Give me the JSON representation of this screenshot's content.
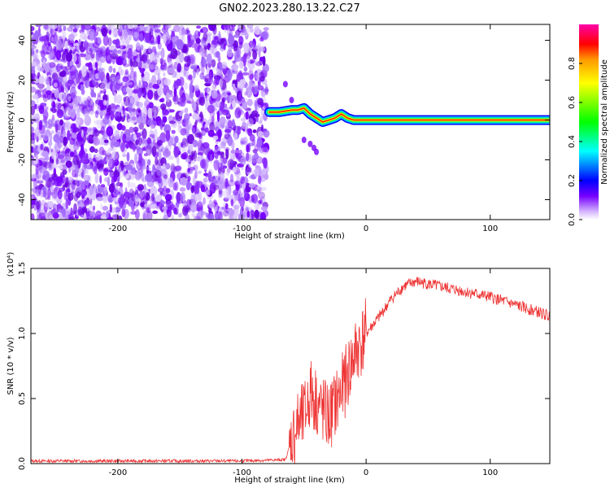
{
  "title": "GN02.2023.280.13.22.C27",
  "chart_data": [
    {
      "type": "heatmap",
      "xlabel": "Height of straight line (km)",
      "ylabel": "Frequency (Hz)",
      "xlim": [
        -270,
        148
      ],
      "ylim": [
        -50,
        48
      ],
      "xticks": [
        -200,
        -100,
        0,
        100
      ],
      "yticks": [
        -40,
        -20,
        0,
        20,
        40
      ],
      "colorbar": {
        "label": "Normalized spectral amplitude",
        "range": [
          0,
          1
        ],
        "ticks": [
          0.0,
          0.2,
          0.4,
          0.6,
          0.8
        ],
        "colormap": [
          "#ff00ff",
          "#ff0066",
          "#ff0000",
          "#ff9900",
          "#ffff00",
          "#00ff00",
          "#00ffff",
          "#0000ff",
          "#7700ff",
          "#ffffff"
        ]
      },
      "noise_region": {
        "x": [
          -270,
          -80
        ],
        "dominant_color": "#7700ff"
      },
      "signal_track": {
        "x": [
          -78,
          -70,
          -60,
          -55,
          -50,
          -45,
          -40,
          -35,
          -30,
          -25,
          -20,
          -15,
          -10,
          0,
          20,
          50,
          100,
          148
        ],
        "freq": [
          4,
          4,
          5,
          5,
          6,
          3,
          1,
          -1,
          0,
          1,
          3,
          1,
          0,
          0,
          0,
          0,
          0,
          0
        ]
      },
      "side_features": [
        {
          "x": [
            -50,
            -45,
            -42,
            -40
          ],
          "freq": [
            -10,
            -12,
            -14,
            -16
          ]
        },
        {
          "x": [
            -65,
            -60
          ],
          "freq": [
            18,
            10
          ]
        }
      ]
    },
    {
      "type": "line",
      "xlabel": "Height of straight line (km)",
      "ylabel": "SNR (10 * v/v)",
      "y_multiplier": "(x10⁴)",
      "xlim": [
        -270,
        148
      ],
      "ylim": [
        0,
        1.5
      ],
      "xticks": [
        -200,
        -100,
        0,
        100
      ],
      "yticks": [
        0.0,
        0.5,
        1.0,
        1.5
      ],
      "series": [
        {
          "color": "#ee3333",
          "x": [
            -270,
            -200,
            -100,
            -65,
            -60,
            -55,
            -50,
            -45,
            -40,
            -35,
            -30,
            -25,
            -20,
            -15,
            -10,
            -5,
            0,
            10,
            20,
            30,
            40,
            50,
            60,
            70,
            80,
            90,
            100,
            110,
            120,
            130,
            140,
            148
          ],
          "y": [
            0.02,
            0.02,
            0.02,
            0.03,
            0.18,
            0.3,
            0.35,
            0.55,
            0.48,
            0.4,
            0.35,
            0.45,
            0.55,
            0.68,
            0.82,
            0.92,
            1.0,
            1.12,
            1.26,
            1.36,
            1.4,
            1.38,
            1.36,
            1.34,
            1.32,
            1.3,
            1.28,
            1.25,
            1.22,
            1.19,
            1.16,
            1.13
          ]
        }
      ]
    }
  ]
}
